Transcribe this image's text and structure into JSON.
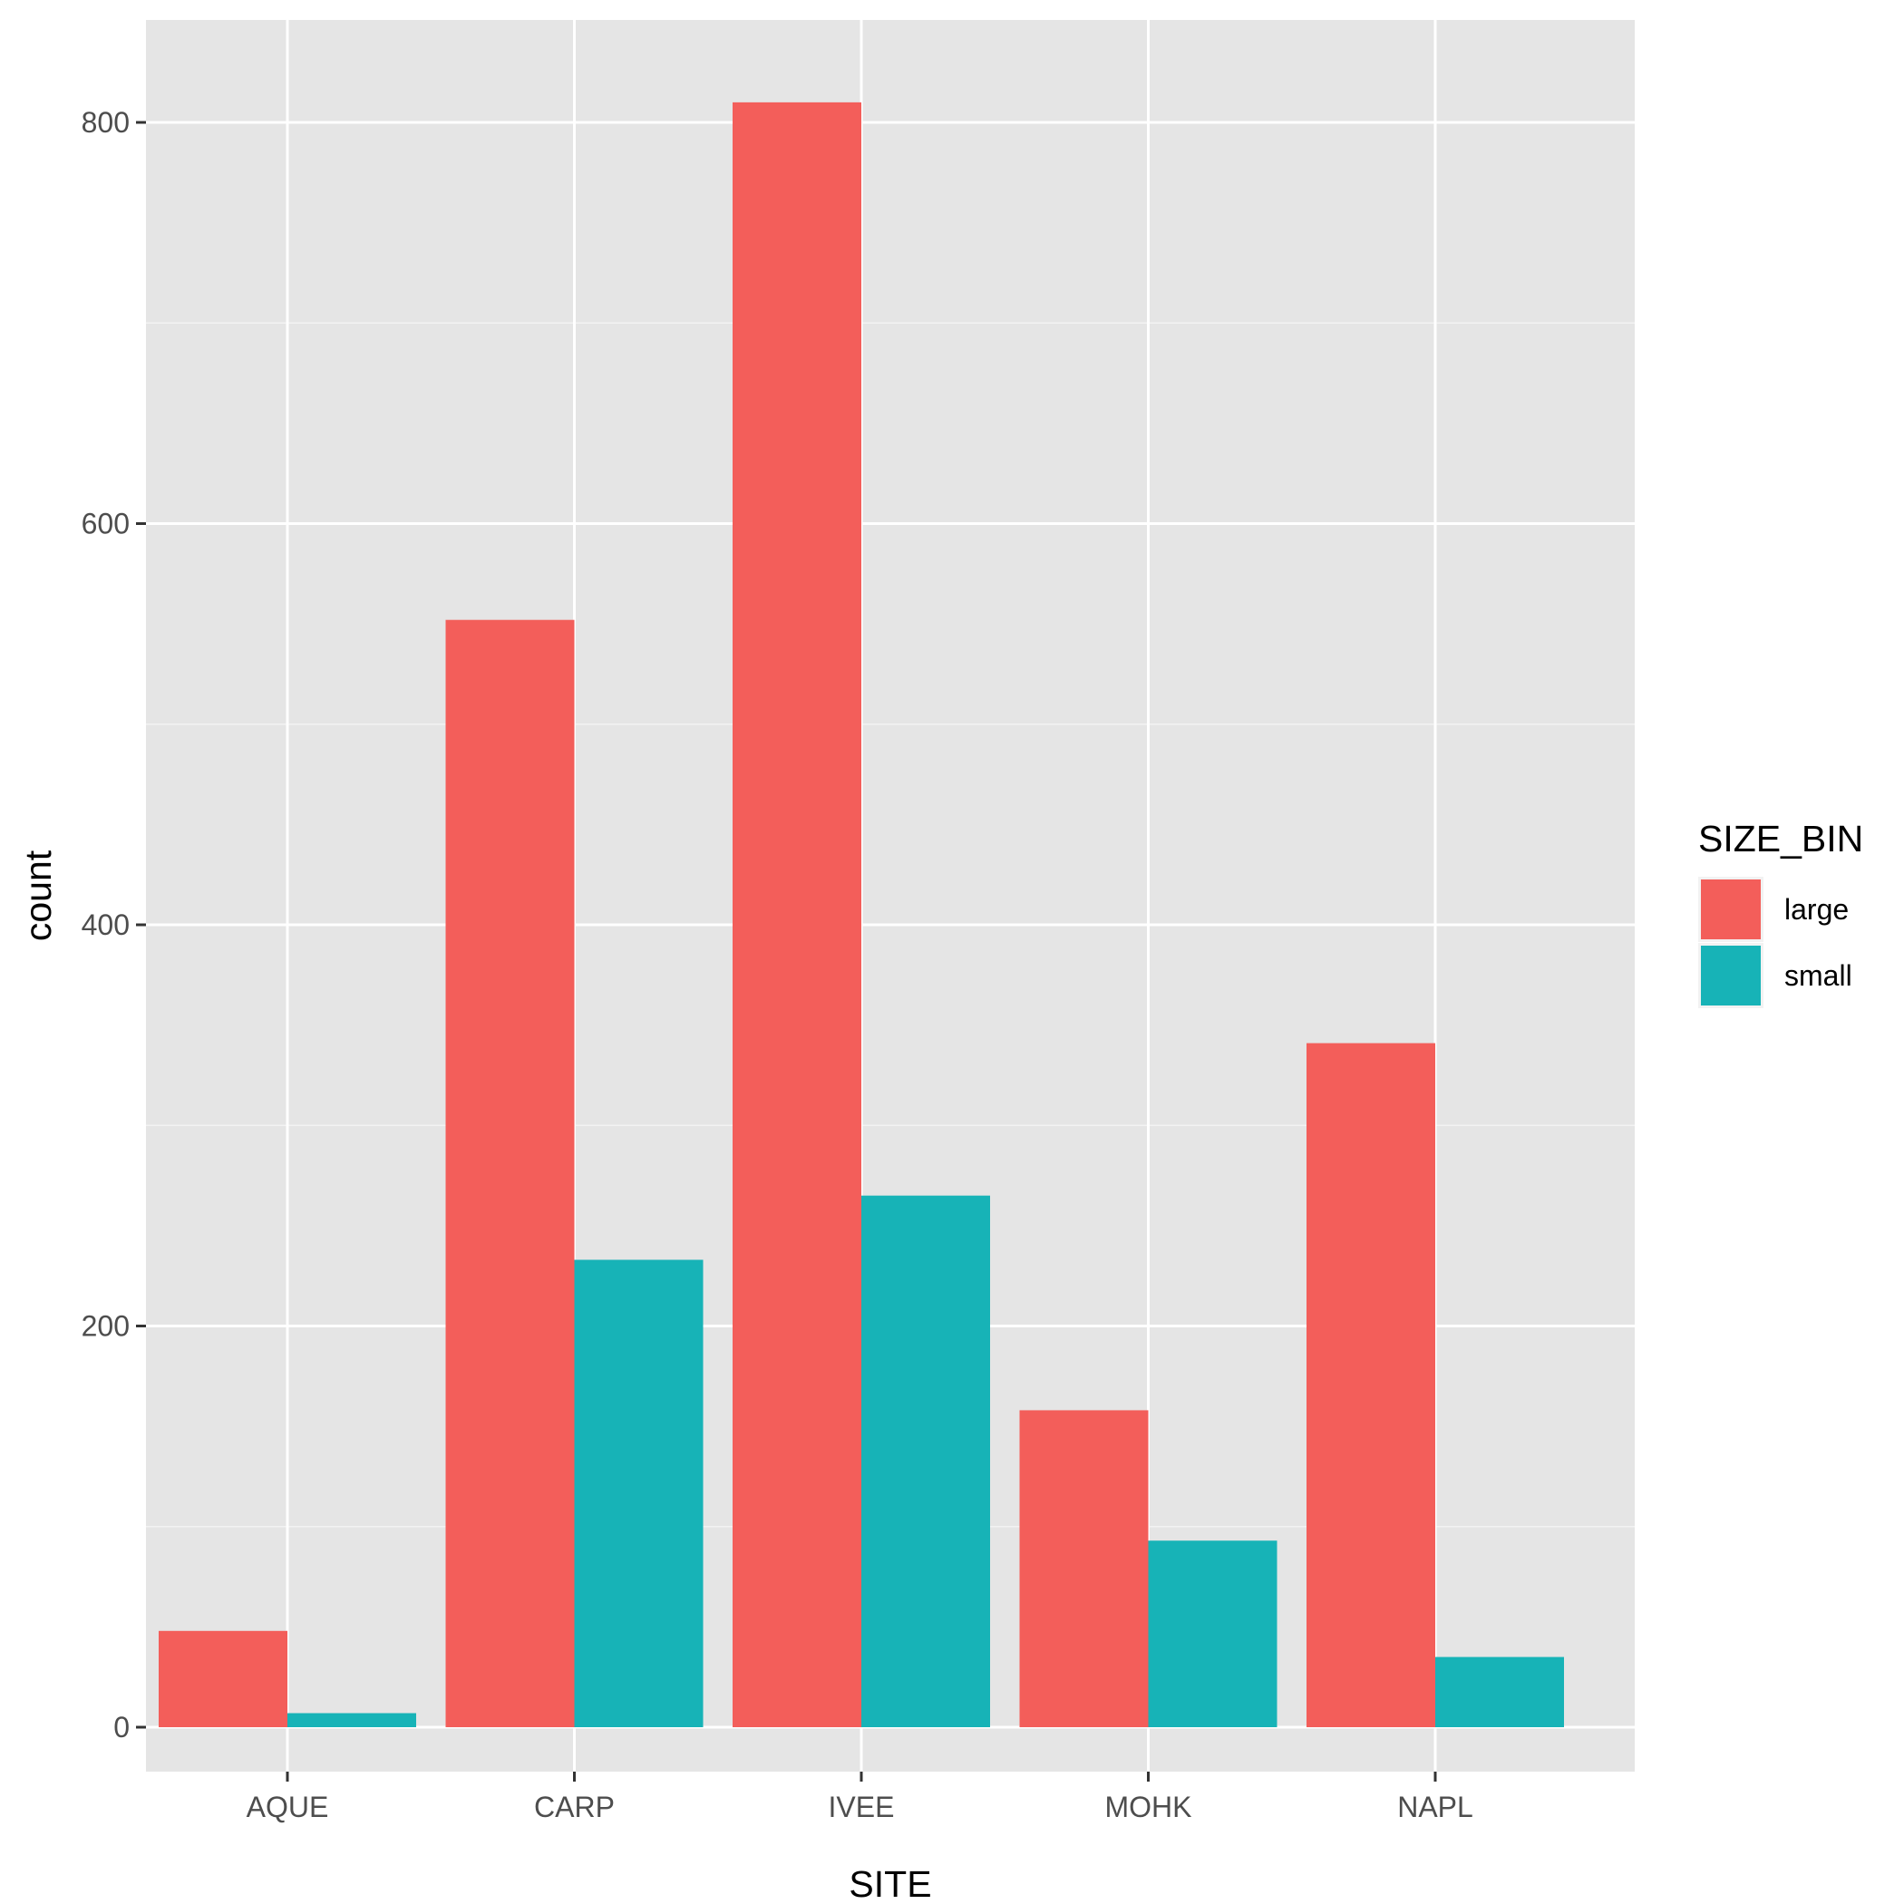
{
  "chart_data": {
    "type": "bar",
    "categories": [
      "AQUE",
      "CARP",
      "IVEE",
      "MOHK",
      "NAPL"
    ],
    "series": [
      {
        "name": "large",
        "color": "#F35E5A",
        "values": [
          48,
          552,
          810,
          158,
          341
        ]
      },
      {
        "name": "small",
        "color": "#17B3B7",
        "values": [
          7,
          233,
          265,
          93,
          35
        ]
      }
    ],
    "xlabel": "SITE",
    "ylabel": "count",
    "yticks": [
      0,
      200,
      400,
      600,
      800
    ],
    "ylim": [
      -40,
      850
    ],
    "grid": true,
    "legend": {
      "title": "SIZE_BIN",
      "position": "right"
    }
  }
}
